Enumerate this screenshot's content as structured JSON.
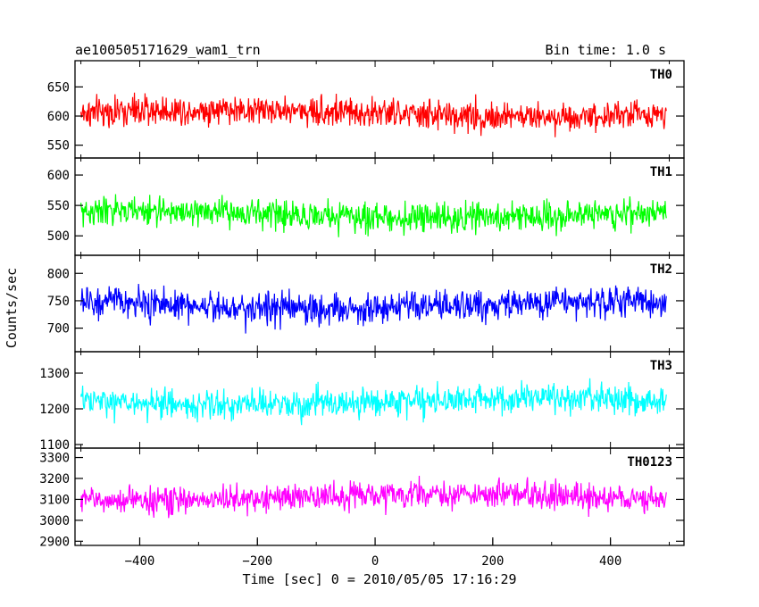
{
  "header": {
    "title": "ae100505171629_wam1_trn",
    "bin_time": "Bin time: 1.0 s"
  },
  "chart_data": {
    "type": "line",
    "xlabel": "Time [sec] 0 = 2010/05/05 17:16:29",
    "ylabel": "Counts/sec",
    "xlim": [
      -510,
      525
    ],
    "x_range": [
      -500,
      495
    ],
    "x_step": 1,
    "x_ticks": [
      -400,
      -200,
      0,
      200,
      400
    ],
    "x_tick_labels": [
      "−400",
      "−200",
      "0",
      "200",
      "400"
    ],
    "panels": [
      {
        "name": "TH0",
        "color": "#ff0000",
        "ylim": [
          528,
          695
        ],
        "yticks": [
          550,
          600,
          650
        ],
        "yticklabels": [
          "550",
          "600",
          "650"
        ],
        "mean": 605,
        "spread": 24,
        "min": 525,
        "max": 700
      },
      {
        "name": "TH1",
        "color": "#00ff00",
        "ylim": [
          468,
          628
        ],
        "yticks": [
          500,
          550,
          600
        ],
        "yticklabels": [
          "500",
          "550",
          "600"
        ],
        "mean": 535,
        "spread": 22,
        "min": 460,
        "max": 615
      },
      {
        "name": "TH2",
        "color": "#0000ff",
        "ylim": [
          657,
          833
        ],
        "yticks": [
          700,
          750,
          800
        ],
        "yticklabels": [
          "700",
          "750",
          "800"
        ],
        "mean": 742,
        "spread": 27,
        "min": 650,
        "max": 835
      },
      {
        "name": "TH3",
        "color": "#00ffff",
        "ylim": [
          1090,
          1360
        ],
        "yticks": [
          1100,
          1200,
          1300
        ],
        "yticklabels": [
          "1100",
          "1200",
          "1300"
        ],
        "mean": 1220,
        "spread": 38,
        "min": 1085,
        "max": 1365
      },
      {
        "name": "TH0123",
        "color": "#ff00ff",
        "ylim": [
          2880,
          3345
        ],
        "yticks": [
          2900,
          3000,
          3100,
          3200,
          3300
        ],
        "yticklabels": [
          "2900",
          "3000",
          "3100",
          "3200",
          "3300"
        ],
        "mean": 3110,
        "spread": 60,
        "min": 2875,
        "max": 3345
      }
    ]
  }
}
